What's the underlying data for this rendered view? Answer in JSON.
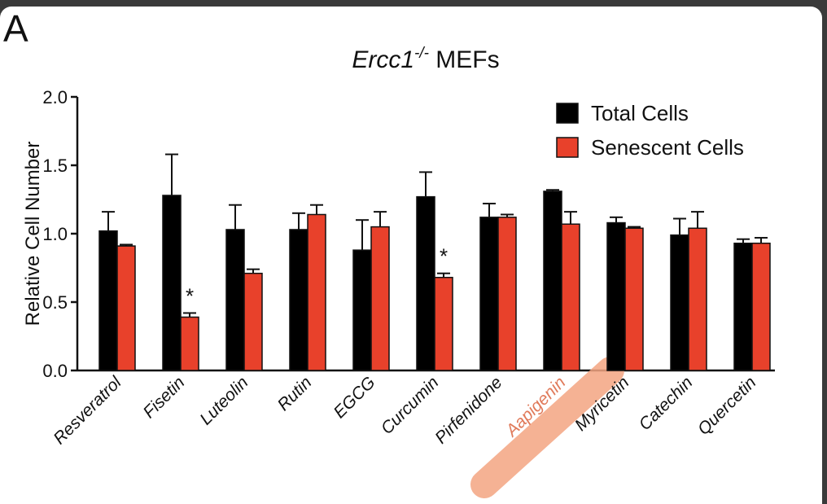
{
  "panel_label": "A",
  "chart_data": {
    "type": "bar",
    "title_main": "Ercc1",
    "title_super": "-/-",
    "title_rest": " MEFs",
    "ylabel": "Relative Cell Number",
    "xlabel": "",
    "ylim": [
      0,
      2.0
    ],
    "yticks": [
      "0.0",
      "0.5",
      "1.0",
      "1.5",
      "2.0"
    ],
    "categories": [
      "Resveratrol",
      "Fisetin",
      "Luteolin",
      "Rutin",
      "EGCG",
      "Curcumin",
      "Pirfenidone",
      "Aapigenin",
      "Myricetin",
      "Catechin",
      "Quercetin"
    ],
    "series": [
      {
        "name": "Total Cells",
        "color": "#000000",
        "values": [
          1.02,
          1.28,
          1.03,
          1.03,
          0.88,
          1.27,
          1.12,
          1.31,
          1.08,
          0.99,
          0.93
        ],
        "errors": [
          0.14,
          0.3,
          0.18,
          0.12,
          0.22,
          0.18,
          0.1,
          0.01,
          0.04,
          0.12,
          0.03
        ]
      },
      {
        "name": "Senescent Cells",
        "color": "#e8412b",
        "values": [
          0.91,
          0.39,
          0.71,
          1.14,
          1.05,
          0.68,
          1.12,
          1.07,
          1.04,
          1.04,
          0.93
        ],
        "errors": [
          0.01,
          0.03,
          0.03,
          0.07,
          0.11,
          0.03,
          0.02,
          0.09,
          0.01,
          0.12,
          0.04
        ]
      }
    ],
    "annotations": [
      {
        "category": "Fisetin",
        "text": "*"
      },
      {
        "category": "Curcumin",
        "text": "*"
      }
    ],
    "highlight": {
      "category": "Aapigenin",
      "color": "#f4a582"
    },
    "legend_position": "top-right",
    "grid": false
  }
}
